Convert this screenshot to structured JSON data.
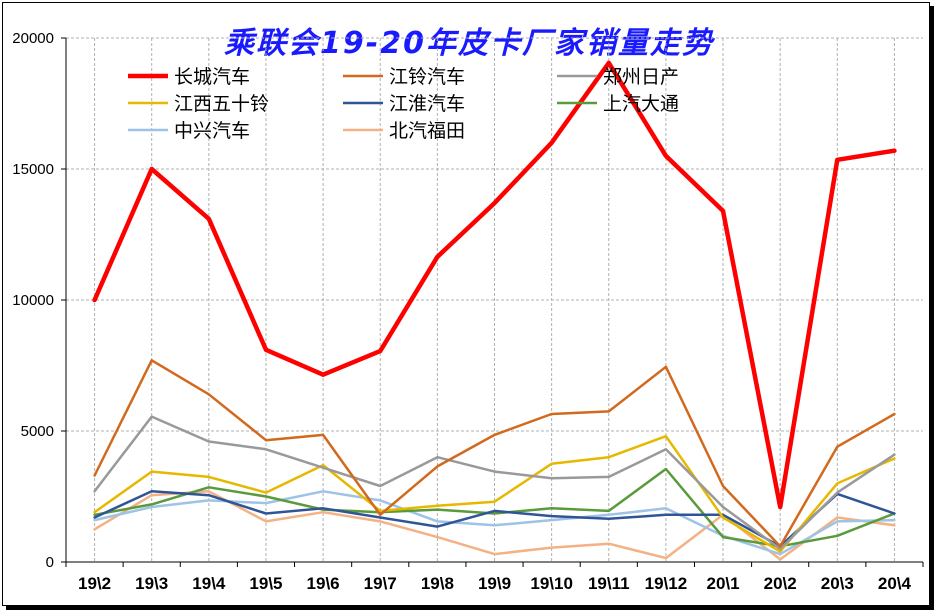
{
  "chart_data": {
    "type": "line",
    "title": "乘联会19-20年皮卡厂家销量走势",
    "xlabel": "",
    "ylabel": "",
    "ylim": [
      0,
      20000
    ],
    "yticks": [
      0,
      5000,
      10000,
      15000,
      20000
    ],
    "grid": true,
    "legend_position": "top",
    "categories": [
      "19\\2",
      "19\\3",
      "19\\4",
      "19\\5",
      "19\\6",
      "19\\7",
      "19\\8",
      "19\\9",
      "19\\10",
      "19\\11",
      "19\\12",
      "20\\1",
      "20\\2",
      "20\\3",
      "20\\4"
    ],
    "series": [
      {
        "name": "长城汽车",
        "color": "#ff0000",
        "width": 4.5,
        "values": [
          10000,
          15000,
          13100,
          8100,
          7150,
          8050,
          11650,
          13700,
          16000,
          19050,
          15500,
          13400,
          2100,
          15350,
          15700
        ]
      },
      {
        "name": "江铃汽车",
        "color": "#d2691e",
        "width": 2.5,
        "values": [
          3300,
          7700,
          6400,
          4650,
          4850,
          1800,
          3650,
          4850,
          5650,
          5750,
          7450,
          2900,
          600,
          4400,
          5650
        ]
      },
      {
        "name": "郑州日产",
        "color": "#999999",
        "width": 2.5,
        "values": [
          2700,
          5550,
          4600,
          4300,
          3600,
          2900,
          4000,
          3450,
          3200,
          3250,
          4300,
          2100,
          500,
          2650,
          4100
        ]
      },
      {
        "name": "江西五十铃",
        "color": "#e6b800",
        "width": 2.5,
        "values": [
          1900,
          3450,
          3250,
          2650,
          3700,
          1950,
          2150,
          2300,
          3750,
          4000,
          4800,
          1700,
          400,
          3000,
          3950
        ]
      },
      {
        "name": "江淮汽车",
        "color": "#2f5597",
        "width": 2.5,
        "values": [
          1700,
          2700,
          2550,
          1850,
          2050,
          1700,
          1350,
          1950,
          1750,
          1650,
          1800,
          1800,
          600,
          2600,
          1850
        ]
      },
      {
        "name": "上汽大通",
        "color": "#5a9a3a",
        "width": 2.5,
        "values": [
          1800,
          2200,
          2850,
          2500,
          2000,
          1900,
          2000,
          1850,
          2050,
          1950,
          3550,
          950,
          600,
          1000,
          1850
        ]
      },
      {
        "name": "中兴汽车",
        "color": "#9dc3e6",
        "width": 2.5,
        "values": [
          1600,
          2100,
          2350,
          2250,
          2700,
          2350,
          1550,
          1400,
          1600,
          1800,
          2050,
          1000,
          300,
          1550,
          1600
        ]
      },
      {
        "name": "北汽福田",
        "color": "#f4b183",
        "width": 2.5,
        "values": [
          1250,
          2550,
          2700,
          1550,
          1900,
          1550,
          950,
          300,
          550,
          700,
          150,
          1800,
          100,
          1700,
          1400
        ]
      }
    ]
  }
}
